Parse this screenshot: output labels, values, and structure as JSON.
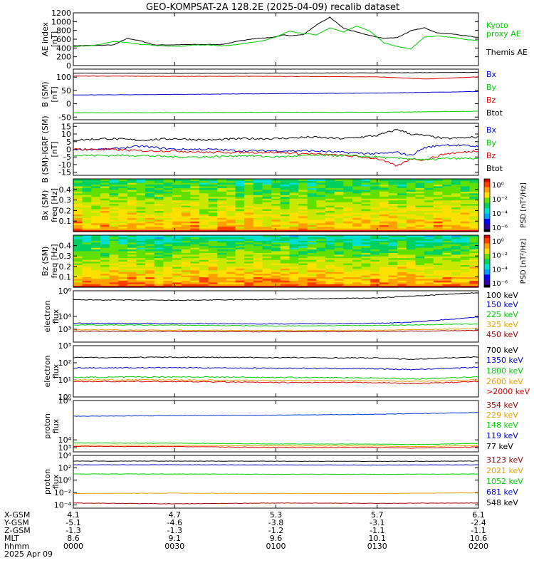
{
  "title": "GEO-KOMPSAT-2A 128.2E (2025-04-09) recalib dataset",
  "colors": {
    "black": "#000000",
    "blue": "#0000cc",
    "green": "#00cc00",
    "red": "#dd0000",
    "orange": "#e6a000",
    "darkred": "#990000",
    "midblue": "#0033cc"
  },
  "chart_data": [
    {
      "type": "line",
      "panel": "ae",
      "ylabel": [
        "AE index",
        "[nT]"
      ],
      "ylim": [
        0,
        1200
      ],
      "yscale": "linear",
      "yticks": [
        "0",
        "200",
        "400",
        "600",
        "800",
        "1000",
        "1200"
      ],
      "ytick_values": [
        0,
        200,
        400,
        600,
        800,
        1000,
        1200
      ],
      "legend": [
        {
          "text": "Kyoto",
          "color": "#00cc00"
        },
        {
          "text": "proxy AE",
          "color": "#00cc00"
        },
        {
          "text": "",
          "color": ""
        },
        {
          "text": "Themis AE",
          "color": "#000000"
        }
      ],
      "series": [
        {
          "name": "Themis AE",
          "color": "#000000",
          "x": [
            0,
            8,
            12,
            16,
            20,
            24,
            28,
            36,
            44,
            52,
            60,
            62,
            64,
            68,
            72,
            76,
            80,
            84,
            88,
            92,
            96,
            100,
            104,
            108,
            112,
            116,
            120
          ],
          "y": [
            450,
            460,
            470,
            620,
            560,
            470,
            470,
            480,
            480,
            600,
            650,
            700,
            680,
            700,
            920,
            1100,
            850,
            760,
            680,
            620,
            640,
            790,
            860,
            740,
            720,
            680,
            640
          ]
        },
        {
          "name": "Kyoto proxy AE",
          "color": "#00cc00",
          "x": [
            0,
            4,
            8,
            12,
            16,
            20,
            24,
            28,
            32,
            36,
            40,
            44,
            48,
            52,
            56,
            60,
            64,
            68,
            72,
            76,
            80,
            84,
            88,
            92,
            96,
            100,
            104,
            108,
            112,
            116,
            120
          ],
          "y": [
            430,
            450,
            480,
            550,
            520,
            480,
            460,
            440,
            440,
            470,
            470,
            450,
            470,
            520,
            560,
            650,
            780,
            730,
            700,
            860,
            760,
            900,
            780,
            520,
            430,
            380,
            650,
            670,
            640,
            600,
            560
          ]
        }
      ]
    },
    {
      "type": "line",
      "panel": "b_sm",
      "ylabel": [
        "B (SM)",
        "[nT]"
      ],
      "ylim": [
        -60,
        130
      ],
      "yscale": "linear",
      "yticks": [
        "-50",
        "0",
        "50",
        "100"
      ],
      "ytick_values": [
        -50,
        0,
        50,
        100
      ],
      "legend": [
        {
          "text": "Bx",
          "color": "#0000cc"
        },
        {
          "text": "By",
          "color": "#00cc00"
        },
        {
          "text": "Bz",
          "color": "#dd0000"
        },
        {
          "text": "Btot",
          "color": "#000000"
        }
      ],
      "series": [
        {
          "name": "Bx",
          "color": "#0000cc",
          "x": [
            0,
            30,
            60,
            90,
            120
          ],
          "y": [
            33,
            35,
            38,
            40,
            46
          ]
        },
        {
          "name": "By",
          "color": "#00cc00",
          "x": [
            0,
            30,
            60,
            90,
            120
          ],
          "y": [
            -34,
            -33,
            -32,
            -32,
            -28
          ]
        },
        {
          "name": "Bz",
          "color": "#dd0000",
          "x": [
            0,
            30,
            60,
            90,
            105,
            120
          ],
          "y": [
            104,
            103,
            103,
            101,
            93,
            101
          ]
        },
        {
          "name": "Btot",
          "color": "#000000",
          "x": [
            0,
            30,
            60,
            90,
            120
          ],
          "y": [
            115,
            114,
            115,
            116,
            118
          ]
        }
      ]
    },
    {
      "type": "line",
      "panel": "db_sm",
      "ylabel": [
        "B (SM)-IGRF (SM)",
        "[nT]"
      ],
      "ylim": [
        -17,
        17
      ],
      "yscale": "linear",
      "yticks": [
        "-15",
        "-10",
        "-5",
        "0",
        "5",
        "10",
        "15"
      ],
      "ytick_values": [
        -15,
        -10,
        -5,
        0,
        5,
        10,
        15
      ],
      "legend": [
        {
          "text": "Bx",
          "color": "#0000cc"
        },
        {
          "text": "By",
          "color": "#00cc00"
        },
        {
          "text": "Bz",
          "color": "#dd0000"
        },
        {
          "text": "Btot",
          "color": "#000000"
        }
      ],
      "series": [
        {
          "name": "Btot",
          "color": "#000000",
          "x": [
            0,
            10,
            20,
            30,
            40,
            50,
            60,
            70,
            80,
            90,
            96,
            100,
            104,
            110,
            120
          ],
          "y": [
            6,
            7,
            6,
            7,
            6,
            7,
            7,
            8,
            7,
            9,
            13,
            10,
            9,
            7,
            8
          ]
        },
        {
          "name": "Bx",
          "color": "#0000cc",
          "x": [
            0,
            10,
            20,
            30,
            40,
            50,
            60,
            70,
            80,
            90,
            96,
            100,
            104,
            110,
            120
          ],
          "y": [
            0,
            0,
            2,
            0,
            0,
            -1,
            -1,
            -1,
            -2,
            -3,
            -2,
            -4,
            1,
            3,
            2
          ]
        },
        {
          "name": "Bz",
          "color": "#dd0000",
          "x": [
            0,
            10,
            20,
            30,
            40,
            50,
            60,
            70,
            80,
            90,
            96,
            100,
            104,
            110,
            120
          ],
          "y": [
            0,
            0,
            -1,
            -1,
            -2,
            -2,
            -2,
            -3,
            -4,
            -6,
            -11,
            -6,
            -7,
            -3,
            -1
          ]
        },
        {
          "name": "By",
          "color": "#00cc00",
          "x": [
            0,
            10,
            20,
            30,
            40,
            50,
            60,
            70,
            80,
            90,
            96,
            100,
            104,
            110,
            120
          ],
          "y": [
            -4,
            -4,
            -4,
            -5,
            -5,
            -4,
            -5,
            -4,
            -4,
            -5,
            -6,
            -6,
            -7,
            -6,
            -6
          ]
        }
      ]
    },
    {
      "type": "heatmap",
      "panel": "bx_psd",
      "ylabel": [
        "Bx (SM)",
        "freq [Hz]"
      ],
      "ylim": [
        0,
        0.5
      ],
      "yticks": [
        "0.1",
        "0.2",
        "0.3",
        "0.4"
      ],
      "ytick_values": [
        0.1,
        0.2,
        0.3,
        0.4
      ],
      "colorbar_label": "PSD [nT²/Hz]",
      "colorbar_ticks": [
        "10⁰",
        "10⁻²",
        "10⁻⁴",
        "10⁻⁶"
      ]
    },
    {
      "type": "heatmap",
      "panel": "bz_psd",
      "ylabel": [
        "Bz (SM)",
        "freq [Hz]"
      ],
      "ylim": [
        0,
        0.5
      ],
      "yticks": [
        "0.1",
        "0.2",
        "0.3",
        "0.4"
      ],
      "ytick_values": [
        0.1,
        0.2,
        0.3,
        0.4
      ],
      "colorbar_label": "PSD [nT²/Hz]",
      "colorbar_ticks": [
        "10⁰",
        "10⁻²",
        "10⁻⁴",
        "10⁻⁶"
      ]
    },
    {
      "type": "line",
      "panel": "electron_low",
      "ylabel": [
        "electron",
        "flux"
      ],
      "ylim": [
        100,
        1000000
      ],
      "yscale": "log",
      "yticks": [
        "10⁶",
        "10⁴",
        "10³"
      ],
      "ytick_values": [
        1000000,
        10000,
        1000
      ],
      "legend": [
        {
          "text": "100 keV",
          "color": "#000000"
        },
        {
          "text": "150 keV",
          "color": "#0000cc"
        },
        {
          "text": "225 keV",
          "color": "#00cc00"
        },
        {
          "text": "325 keV",
          "color": "#e6a000"
        },
        {
          "text": "450 keV",
          "color": "#990000"
        }
      ],
      "series": [
        {
          "name": "100 keV",
          "color": "#000000",
          "x": [
            0,
            30,
            60,
            90,
            120
          ],
          "y": [
            200000,
            180000,
            210000,
            280000,
            700000
          ]
        },
        {
          "name": "150 keV",
          "color": "#0000cc",
          "x": [
            0,
            30,
            60,
            90,
            100,
            120
          ],
          "y": [
            3000,
            2800,
            2600,
            2900,
            3500,
            9000
          ]
        },
        {
          "name": "225 keV",
          "color": "#00cc00",
          "x": [
            0,
            30,
            60,
            90,
            120
          ],
          "y": [
            2200,
            2100,
            1800,
            2000,
            2600
          ]
        },
        {
          "name": "325 keV",
          "color": "#e6a000",
          "x": [
            0,
            30,
            60,
            90,
            120
          ],
          "y": [
            900,
            850,
            800,
            850,
            1100
          ]
        },
        {
          "name": "450 keV",
          "color": "#990000",
          "x": [
            0,
            30,
            60,
            90,
            120
          ],
          "y": [
            700,
            680,
            650,
            680,
            800
          ]
        }
      ]
    },
    {
      "type": "line",
      "panel": "electron_high",
      "ylabel": [
        "electron",
        "flux"
      ],
      "ylim": [
        1,
        1000
      ],
      "yscale": "log",
      "yticks": [
        "10³",
        "10²",
        "10¹",
        "10⁰"
      ],
      "ytick_values": [
        1000,
        100,
        10,
        1
      ],
      "legend": [
        {
          "text": "700 keV",
          "color": "#000000"
        },
        {
          "text": "1350 keV",
          "color": "#0000cc"
        },
        {
          "text": "1800 keV",
          "color": "#00cc00"
        },
        {
          "text": "2600 keV",
          "color": "#e6a000"
        },
        {
          "text": ">2000 keV",
          "color": "#dd0000"
        }
      ],
      "series": [
        {
          "name": "700 keV",
          "color": "#000000",
          "x": [
            0,
            30,
            60,
            90,
            100,
            120
          ],
          "y": [
            200,
            210,
            200,
            190,
            160,
            220
          ]
        },
        {
          "name": "1350 keV",
          "color": "#0000cc",
          "x": [
            0,
            30,
            60,
            90,
            100,
            120
          ],
          "y": [
            50,
            52,
            48,
            45,
            40,
            55
          ]
        },
        {
          "name": "1800 keV",
          "color": "#00cc00",
          "x": [
            0,
            30,
            60,
            90,
            100,
            120
          ],
          "y": [
            14,
            15,
            14,
            13,
            11,
            15
          ]
        },
        {
          "name": "2600 keV",
          "color": "#e6a000",
          "x": [
            0,
            30,
            60,
            90,
            100,
            120
          ],
          "y": [
            10,
            10,
            9,
            9,
            8,
            10
          ]
        },
        {
          "name": ">2000 keV",
          "color": "#dd0000",
          "x": [
            0,
            30,
            60,
            90,
            100,
            120
          ],
          "y": [
            8,
            8,
            7,
            7,
            6,
            8
          ]
        }
      ]
    },
    {
      "type": "line",
      "panel": "proton_low",
      "ylabel": [
        "proton",
        "flux"
      ],
      "ylim": [
        300,
        1000000000
      ],
      "yscale": "log",
      "yticks": [
        "10⁹",
        "10⁴",
        "10³"
      ],
      "ytick_values": [
        1000000000,
        10000,
        1000
      ],
      "legend": [
        {
          "text": "354 keV",
          "color": "#990000"
        },
        {
          "text": "229 keV",
          "color": "#e6a000"
        },
        {
          "text": "148 keV",
          "color": "#00cc00"
        },
        {
          "text": "119 keV",
          "color": "#0000cc"
        },
        {
          "text": "77 keV",
          "color": "#000000"
        }
      ],
      "series": [
        {
          "name": "77 keV",
          "color": "#0033cc",
          "x": [
            0,
            30,
            60,
            90,
            120
          ],
          "y": [
            10000000,
            12000000,
            14000000,
            18000000,
            30000000
          ]
        },
        {
          "name": "148 keV",
          "color": "#00cc00",
          "x": [
            0,
            30,
            60,
            90,
            100,
            120
          ],
          "y": [
            4000,
            3800,
            3000,
            3000,
            2500,
            3500
          ]
        },
        {
          "name": "229 keV",
          "color": "#e6a000",
          "x": [
            0,
            30,
            60,
            90,
            100,
            120
          ],
          "y": [
            2200,
            2100,
            1700,
            1700,
            1400,
            1900
          ]
        },
        {
          "name": "354 keV",
          "color": "#dd0000",
          "x": [
            0,
            30,
            60,
            90,
            100,
            120
          ],
          "y": [
            1500,
            1400,
            1100,
            1100,
            900,
            1300
          ]
        }
      ]
    },
    {
      "type": "line",
      "panel": "proton_high",
      "ylabel": [
        "proton",
        "flux"
      ],
      "ylim": [
        3e-05,
        10000
      ],
      "yscale": "log",
      "yticks": [
        "10⁴",
        "10²",
        "10⁰",
        "10⁻²",
        "10⁻⁴"
      ],
      "ytick_values": [
        10000,
        100,
        1,
        0.01,
        0.0001
      ],
      "legend": [
        {
          "text": "3123 keV",
          "color": "#990000"
        },
        {
          "text": "2021 keV",
          "color": "#e6a000"
        },
        {
          "text": "1052 keV",
          "color": "#00cc00"
        },
        {
          "text": "681 keV",
          "color": "#0000cc"
        },
        {
          "text": "548 keV",
          "color": "#000000"
        }
      ],
      "series": [
        {
          "name": "548 keV",
          "color": "#000000",
          "x": [
            0,
            30,
            60,
            90,
            120
          ],
          "y": [
            1200,
            1200,
            1150,
            1100,
            1200
          ]
        },
        {
          "name": "681 keV",
          "color": "#0000cc",
          "x": [
            0,
            30,
            60,
            90,
            120
          ],
          "y": [
            300,
            310,
            290,
            280,
            300
          ]
        },
        {
          "name": "1052 keV",
          "color": "#00cc00",
          "x": [
            0,
            30,
            60,
            90,
            120
          ],
          "y": [
            10,
            10,
            9,
            9,
            10
          ]
        },
        {
          "name": "2021 keV",
          "color": "#e6a000",
          "x": [
            0,
            30,
            60,
            90,
            120
          ],
          "y": [
            0.007,
            0.008,
            0.007,
            0.007,
            0.009
          ]
        },
        {
          "name": "3123 keV",
          "color": "#990000",
          "x": [
            0,
            30,
            60,
            90,
            120
          ],
          "y": [
            0.0002,
            0.00015,
            0.0002,
            0.00018,
            0.0002
          ]
        }
      ]
    }
  ],
  "xaxis": {
    "labels": [
      "X-GSM",
      "Y-GSM",
      "Z-GSM",
      "MLT",
      "hhmm",
      "2025 Apr 09"
    ],
    "tick_minutes": [
      0,
      30,
      60,
      90,
      120
    ],
    "columns": [
      [
        "4.1",
        "-5.1",
        "-1.3",
        "8.6",
        "0000"
      ],
      [
        "4.7",
        "-4.6",
        "-1.3",
        "9.1",
        "0030"
      ],
      [
        "5.3",
        "-3.8",
        "-1.2",
        "9.6",
        "0100"
      ],
      [
        "5.7",
        "-3.1",
        "-1.1",
        "10.1",
        "0130"
      ],
      [
        "6.1",
        "-2.4",
        "-1.1",
        "10.6",
        "0200"
      ]
    ]
  }
}
